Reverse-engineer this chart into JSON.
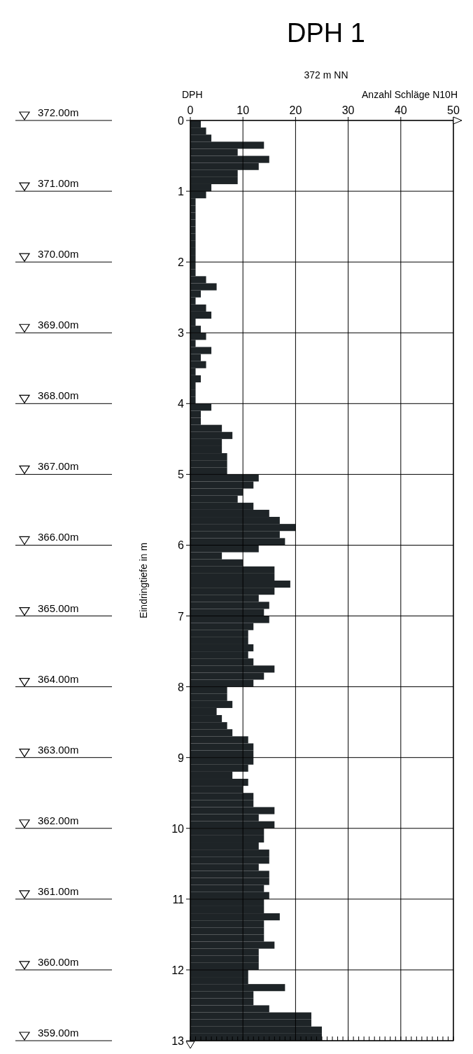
{
  "chart_data": {
    "type": "bar",
    "orientation": "horizontal",
    "title": "DPH 1",
    "subtitle": "372 m NN",
    "x2label": "Anzahl Schläge N10H",
    "ylabel": "Eindringtiefe in m",
    "annotations": [
      "DPH"
    ],
    "series": [
      {
        "color": "#1e2427",
        "axis": "x2",
        "x": [
          0.05,
          0.15,
          0.25,
          0.35,
          0.45,
          0.55,
          0.65,
          0.75,
          0.85,
          0.95,
          1.05,
          1.15,
          1.25,
          1.35,
          1.45,
          1.55,
          1.65,
          1.75,
          1.85,
          1.95,
          2.05,
          2.15,
          2.25,
          2.35,
          2.45,
          2.55,
          2.65,
          2.75,
          2.85,
          2.95,
          3.05,
          3.15,
          3.25,
          3.35,
          3.45,
          3.55,
          3.65,
          3.75,
          3.85,
          3.95,
          4.05,
          4.15,
          4.25,
          4.35,
          4.45,
          4.55,
          4.65,
          4.75,
          4.85,
          4.95,
          5.05,
          5.15,
          5.25,
          5.35,
          5.45,
          5.55,
          5.65,
          5.75,
          5.85,
          5.95,
          6.05,
          6.15,
          6.25,
          6.35,
          6.45,
          6.55,
          6.65,
          6.75,
          6.85,
          6.95,
          7.05,
          7.15,
          7.25,
          7.35,
          7.45,
          7.55,
          7.65,
          7.75,
          7.85,
          7.95,
          8.05,
          8.15,
          8.25,
          8.35,
          8.45,
          8.55,
          8.65,
          8.75,
          8.85,
          8.95,
          9.05,
          9.15,
          9.25,
          9.35,
          9.45,
          9.55,
          9.65,
          9.75,
          9.85,
          9.95,
          10.05,
          10.15,
          10.25,
          10.35,
          10.45,
          10.55,
          10.65,
          10.75,
          10.85,
          10.95,
          11.05,
          11.15,
          11.25,
          11.35,
          11.45,
          11.55,
          11.65,
          11.75,
          11.85,
          11.95,
          12.05,
          12.15,
          12.25,
          12.35,
          12.45,
          12.55,
          12.65,
          12.75,
          12.85,
          12.95
        ],
        "values": [
          2,
          3,
          4,
          14,
          9,
          15,
          13,
          9,
          9,
          4,
          3,
          1,
          1,
          1,
          1,
          1,
          1,
          1,
          1,
          1,
          1,
          1,
          3,
          5,
          2,
          1,
          3,
          4,
          1,
          2,
          3,
          1,
          4,
          2,
          3,
          1,
          2,
          1,
          1,
          1,
          4,
          2,
          2,
          6,
          8,
          6,
          6,
          7,
          7,
          7,
          13,
          12,
          10,
          9,
          12,
          15,
          17,
          20,
          17,
          18,
          13,
          6,
          10,
          16,
          16,
          19,
          16,
          13,
          15,
          14,
          15,
          12,
          11,
          11,
          12,
          11,
          12,
          16,
          14,
          12,
          7,
          7,
          8,
          5,
          6,
          7,
          8,
          11,
          12,
          12,
          12,
          11,
          8,
          11,
          10,
          12,
          12,
          16,
          13,
          16,
          14,
          14,
          13,
          15,
          15,
          13,
          15,
          15,
          14,
          15,
          14,
          14,
          17,
          14,
          14,
          14,
          16,
          13,
          13,
          13,
          11,
          11,
          18,
          12,
          12,
          15,
          23,
          23,
          25,
          25
        ]
      }
    ],
    "x2lim": [
      0,
      50
    ],
    "x2ticks": [
      0,
      10,
      20,
      30,
      40,
      50
    ],
    "ylim": [
      13,
      0
    ],
    "yticks": [
      0,
      1,
      2,
      3,
      4,
      5,
      6,
      7,
      8,
      9,
      10,
      11,
      12,
      13
    ],
    "y2lim": [
      359,
      372
    ],
    "y2ticks": [
      {
        "value": 372,
        "label": "372.00m"
      },
      {
        "value": 371,
        "label": "371.00m"
      },
      {
        "value": 370,
        "label": "370.00m"
      },
      {
        "value": 369,
        "label": "369.00m"
      },
      {
        "value": 368,
        "label": "368.00m"
      },
      {
        "value": 367,
        "label": "367.00m"
      },
      {
        "value": 366,
        "label": "366.00m"
      },
      {
        "value": 365,
        "label": "365.00m"
      },
      {
        "value": 364,
        "label": "364.00m"
      },
      {
        "value": 363,
        "label": "363.00m"
      },
      {
        "value": 362,
        "label": "362.00m"
      },
      {
        "value": 361,
        "label": "361.00m"
      },
      {
        "value": 360,
        "label": "360.00m"
      },
      {
        "value": 359,
        "label": "359.00m"
      }
    ],
    "grid": true
  }
}
